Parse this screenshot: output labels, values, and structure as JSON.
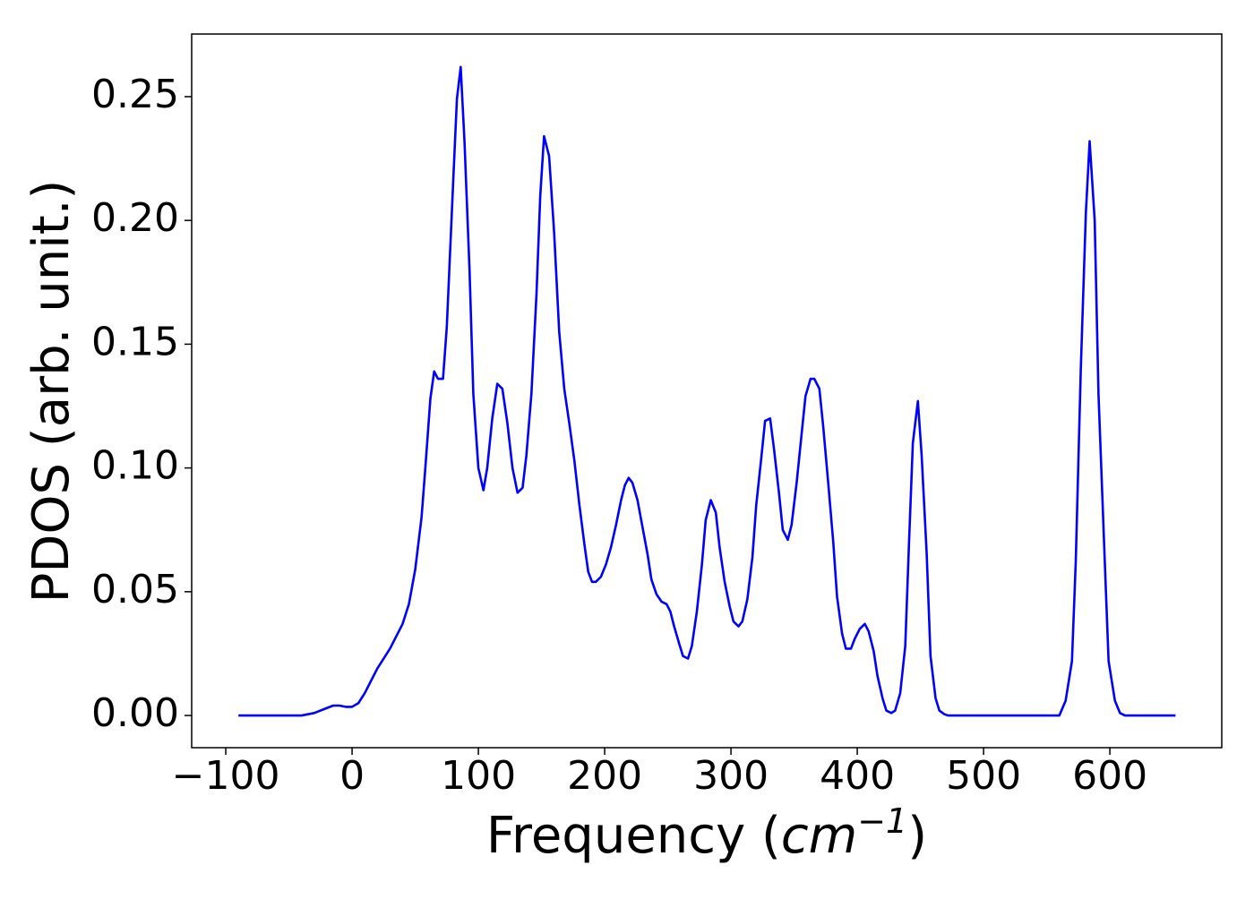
{
  "chart_data": {
    "type": "line",
    "xlabel": {
      "text": "Frequency (",
      "unit": "cm",
      "exponent": "−1",
      "close": ")"
    },
    "ylabel": "PDOS (arb. unit.)",
    "xlim": [
      -127,
      688.6
    ],
    "ylim": [
      -0.013,
      0.2753
    ],
    "xticks": [
      {
        "value": -100,
        "label": "−100"
      },
      0,
      100,
      200,
      300,
      400,
      500,
      600
    ],
    "yticks": [
      {
        "value": 0,
        "label": "0.00"
      },
      {
        "value": 0.05,
        "label": "0.05"
      },
      {
        "value": 0.1,
        "label": "0.10"
      },
      {
        "value": 0.15,
        "label": "0.15"
      },
      {
        "value": 0.2,
        "label": "0.20"
      },
      {
        "value": 0.25,
        "label": "0.25"
      }
    ],
    "series": [
      {
        "color": "#0000ff",
        "x": [
          -90,
          -40,
          -30,
          -20,
          -15,
          -10,
          -5,
          0,
          5,
          10,
          20,
          30,
          40,
          45,
          50,
          55,
          58,
          62,
          65,
          68,
          72,
          75,
          80,
          83,
          86,
          89,
          93,
          96,
          100,
          104,
          107,
          111,
          115,
          119,
          123,
          127,
          131,
          135,
          138,
          142,
          146,
          149,
          152,
          156,
          160,
          164,
          168,
          172,
          176,
          180,
          184,
          187,
          190,
          193,
          197,
          201,
          205,
          209,
          213,
          216,
          219,
          222,
          226,
          230,
          234,
          237,
          241,
          245,
          249,
          252,
          255,
          259,
          262,
          266,
          269,
          273,
          277,
          280,
          284,
          288,
          291,
          295,
          299,
          302,
          306,
          309,
          313,
          317,
          320,
          324,
          327,
          331,
          334,
          338,
          341,
          345,
          348,
          352,
          356,
          359,
          363,
          366,
          370,
          373,
          377,
          381,
          384,
          388,
          391,
          395,
          398,
          402,
          406,
          409,
          413,
          416,
          420,
          423,
          427,
          430,
          434,
          438,
          441,
          444,
          448,
          451,
          455,
          458,
          462,
          465,
          469,
          472,
          476,
          560,
          565,
          570,
          573,
          577,
          581,
          584,
          588,
          591,
          596,
          599,
          604,
          608,
          612,
          652
        ],
        "values": [
          0,
          0,
          0.001,
          0.003,
          0.004,
          0.004,
          0.0035,
          0.0035,
          0.005,
          0.009,
          0.019,
          0.027,
          0.037,
          0.045,
          0.059,
          0.08,
          0.1,
          0.128,
          0.139,
          0.136,
          0.136,
          0.157,
          0.215,
          0.249,
          0.262,
          0.232,
          0.18,
          0.13,
          0.1,
          0.091,
          0.1,
          0.12,
          0.134,
          0.132,
          0.118,
          0.1,
          0.09,
          0.092,
          0.105,
          0.13,
          0.17,
          0.21,
          0.234,
          0.226,
          0.195,
          0.155,
          0.132,
          0.118,
          0.103,
          0.085,
          0.069,
          0.058,
          0.054,
          0.054,
          0.056,
          0.061,
          0.068,
          0.077,
          0.087,
          0.093,
          0.096,
          0.094,
          0.087,
          0.076,
          0.065,
          0.055,
          0.049,
          0.046,
          0.045,
          0.042,
          0.036,
          0.029,
          0.024,
          0.023,
          0.028,
          0.042,
          0.061,
          0.079,
          0.087,
          0.082,
          0.068,
          0.054,
          0.044,
          0.038,
          0.036,
          0.038,
          0.047,
          0.064,
          0.085,
          0.104,
          0.119,
          0.12,
          0.108,
          0.09,
          0.075,
          0.071,
          0.077,
          0.094,
          0.114,
          0.129,
          0.136,
          0.136,
          0.132,
          0.117,
          0.094,
          0.07,
          0.048,
          0.033,
          0.027,
          0.027,
          0.031,
          0.035,
          0.037,
          0.034,
          0.026,
          0.016,
          0.007,
          0.002,
          0.001,
          0.002,
          0.009,
          0.028,
          0.07,
          0.11,
          0.127,
          0.105,
          0.065,
          0.024,
          0.007,
          0.002,
          0.0005,
          0,
          0,
          0,
          0.006,
          0.022,
          0.062,
          0.14,
          0.203,
          0.232,
          0.2,
          0.13,
          0.062,
          0.022,
          0.006,
          0.001,
          0,
          0
        ]
      }
    ]
  }
}
